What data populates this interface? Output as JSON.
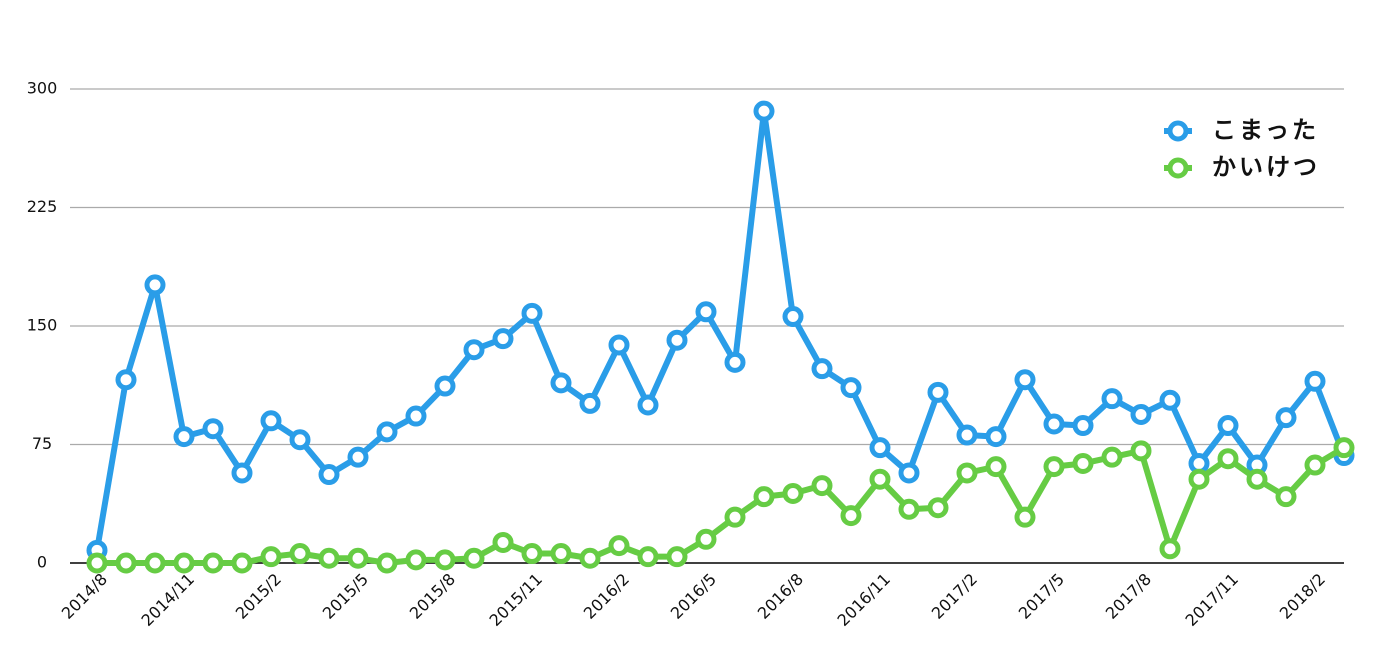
{
  "chart_data": {
    "type": "line",
    "categories": [
      "2014/8",
      null,
      null,
      "2014/11",
      null,
      null,
      "2015/2",
      null,
      null,
      "2015/5",
      null,
      null,
      "2015/8",
      null,
      null,
      "2015/11",
      null,
      null,
      "2016/2",
      null,
      null,
      "2016/5",
      null,
      null,
      "2016/8",
      null,
      null,
      "2016/11",
      null,
      null,
      "2017/2",
      null,
      null,
      "2017/5",
      null,
      null,
      "2017/8",
      null,
      null,
      "2017/11",
      null,
      null,
      "2018/2",
      null
    ],
    "series": [
      {
        "name": "こまった",
        "color": "#2a9de8",
        "values": [
          8,
          116,
          176,
          80,
          85,
          57,
          90,
          78,
          56,
          67,
          83,
          93,
          112,
          135,
          142,
          158,
          114,
          101,
          138,
          100,
          141,
          159,
          127,
          286,
          156,
          123,
          111,
          73,
          57,
          108,
          81,
          80,
          116,
          88,
          87,
          104,
          94,
          103,
          63,
          87,
          62,
          92,
          115,
          68
        ]
      },
      {
        "name": "かいけつ",
        "color": "#66cc44",
        "values": [
          0,
          0,
          0,
          0,
          0,
          0,
          4,
          6,
          3,
          3,
          0,
          2,
          2,
          3,
          13,
          6,
          6,
          3,
          11,
          4,
          4,
          15,
          29,
          42,
          44,
          49,
          30,
          53,
          34,
          35,
          57,
          61,
          29,
          61,
          63,
          67,
          71,
          9,
          53,
          66,
          53,
          42,
          62,
          73
        ]
      }
    ],
    "ylim": [
      0,
      300
    ],
    "yticks": [
      0,
      75,
      150,
      225,
      300
    ],
    "grid": true,
    "legend": "top-right"
  }
}
